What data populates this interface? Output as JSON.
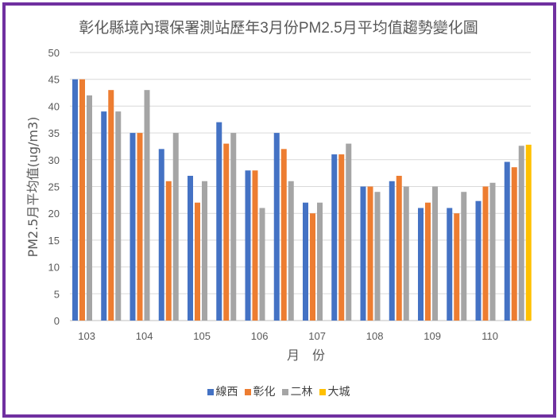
{
  "chart_data": {
    "type": "bar",
    "title": "彰化縣境內環保署測站歷年3月份PM2.5月平均值趨勢變化圖",
    "xlabel": "月　份",
    "ylabel": "PM2.5月平均值(ug/m3)",
    "ylim": [
      0,
      50
    ],
    "yticks": [
      0,
      5,
      10,
      15,
      20,
      25,
      30,
      35,
      40,
      45,
      50
    ],
    "grid": true,
    "legend": "bottom",
    "categories": [
      "103",
      "",
      "104",
      "",
      "105",
      "",
      "106",
      "",
      "107",
      "",
      "108",
      "",
      "109",
      "",
      "110",
      ""
    ],
    "series": [
      {
        "name": "線西",
        "color": "#4472c4",
        "values": [
          45,
          39,
          35,
          32,
          27,
          37,
          28,
          35,
          22,
          31,
          25,
          26,
          21,
          21,
          22.3,
          29.6
        ]
      },
      {
        "name": "彰化",
        "color": "#ed7d31",
        "values": [
          45,
          43,
          35,
          26,
          22,
          33,
          28,
          32,
          20,
          31,
          25,
          27,
          22,
          20,
          25,
          28.6
        ]
      },
      {
        "name": "二林",
        "color": "#a5a5a5",
        "values": [
          42,
          39,
          43,
          35,
          26,
          35,
          21,
          26,
          22,
          33,
          24,
          25,
          25,
          24,
          25.7,
          32.6
        ]
      },
      {
        "name": "大城",
        "color": "#ffc000",
        "values": [
          null,
          null,
          null,
          null,
          null,
          null,
          null,
          null,
          null,
          null,
          null,
          null,
          null,
          null,
          null,
          32.8
        ]
      }
    ]
  },
  "frame_color": "#7030a0"
}
